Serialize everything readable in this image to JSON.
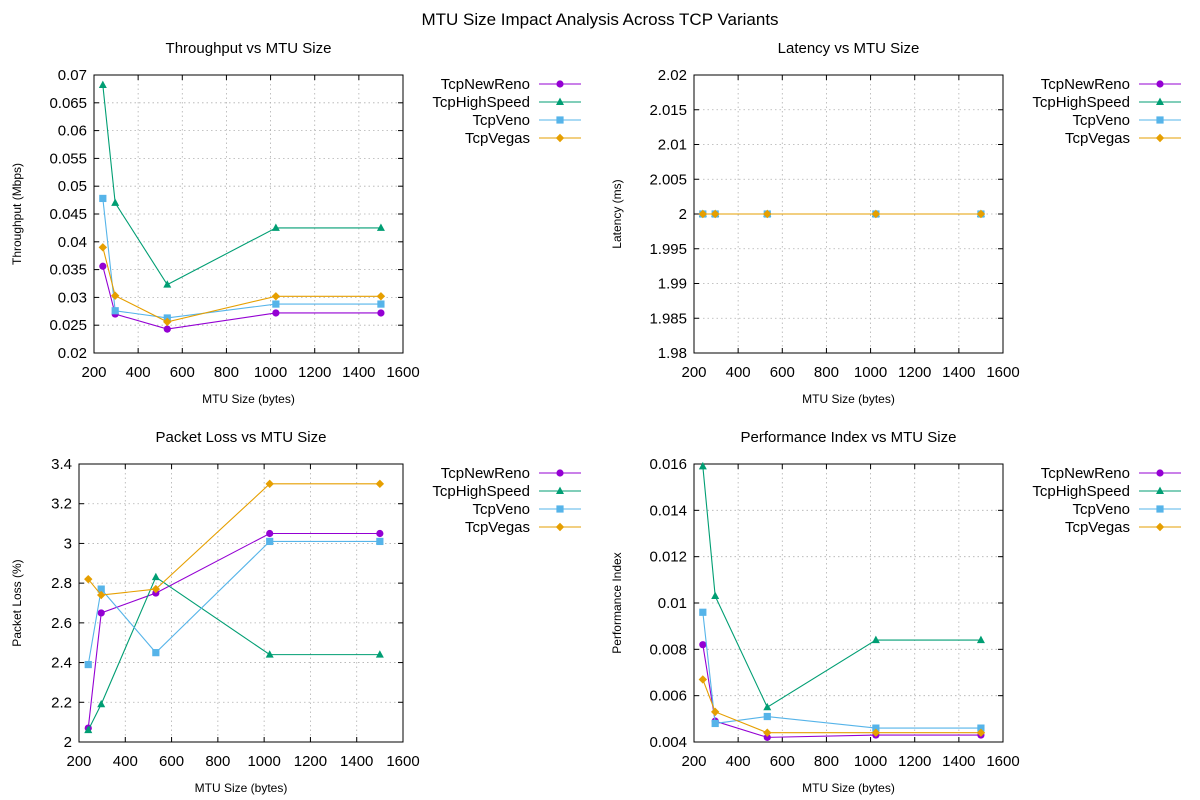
{
  "figure": {
    "title": "MTU Size Impact Analysis Across TCP Variants"
  },
  "legend_styles": [
    {
      "color": "#9400d3",
      "marker": "circle"
    },
    {
      "color": "#009e73",
      "marker": "triangle"
    },
    {
      "color": "#56b4e9",
      "marker": "square"
    },
    {
      "color": "#e69f00",
      "marker": "diamond"
    }
  ],
  "chart_data": [
    {
      "type": "line",
      "title": "Throughput vs MTU Size",
      "xlabel": "MTU Size (bytes)",
      "ylabel": "Throughput (Mbps)",
      "xlim": [
        200,
        1600
      ],
      "ylim": [
        0.02,
        0.07
      ],
      "xticks": [
        "200",
        "400",
        "600",
        "800",
        "1000",
        "1200",
        "1400",
        "1600"
      ],
      "yticks": [
        "0.02",
        "0.025",
        "0.03",
        "0.035",
        "0.04",
        "0.045",
        "0.05",
        "0.055",
        "0.06",
        "0.065",
        "0.07"
      ],
      "grid": true,
      "legend_position": "outside-right",
      "x": [
        240,
        296,
        532,
        1024,
        1500
      ],
      "series": [
        {
          "name": "TcpNewReno",
          "values": [
            0.0356,
            0.027,
            0.0243,
            0.0272,
            0.0272
          ]
        },
        {
          "name": "TcpHighSpeed",
          "values": [
            0.0682,
            0.047,
            0.0323,
            0.0425,
            0.0425
          ]
        },
        {
          "name": "TcpVeno",
          "values": [
            0.0478,
            0.0276,
            0.0263,
            0.0288,
            0.0288
          ]
        },
        {
          "name": "TcpVegas",
          "values": [
            0.039,
            0.0303,
            0.0256,
            0.0302,
            0.0302
          ]
        }
      ]
    },
    {
      "type": "line",
      "title": "Latency vs MTU Size",
      "xlabel": "MTU Size (bytes)",
      "ylabel": "Latency (ms)",
      "xlim": [
        200,
        1600
      ],
      "ylim": [
        1.98,
        2.02
      ],
      "xticks": [
        "200",
        "400",
        "600",
        "800",
        "1000",
        "1200",
        "1400",
        "1600"
      ],
      "yticks": [
        "1.98",
        "1.985",
        "1.99",
        "1.995",
        "2",
        "2.005",
        "2.01",
        "2.015",
        "2.02"
      ],
      "grid": true,
      "legend_position": "outside-right",
      "x": [
        240,
        296,
        532,
        1024,
        1500
      ],
      "series": [
        {
          "name": "TcpNewReno",
          "values": [
            2,
            2,
            2,
            2,
            2
          ]
        },
        {
          "name": "TcpHighSpeed",
          "values": [
            2,
            2,
            2,
            2,
            2
          ]
        },
        {
          "name": "TcpVeno",
          "values": [
            2,
            2,
            2,
            2,
            2
          ]
        },
        {
          "name": "TcpVegas",
          "values": [
            2,
            2,
            2,
            2,
            2
          ]
        }
      ]
    },
    {
      "type": "line",
      "title": "Packet Loss vs MTU Size",
      "xlabel": "MTU Size (bytes)",
      "ylabel": "Packet Loss (%)",
      "xlim": [
        200,
        1600
      ],
      "ylim": [
        2,
        3.4
      ],
      "xticks": [
        "200",
        "400",
        "600",
        "800",
        "1000",
        "1200",
        "1400",
        "1600"
      ],
      "yticks": [
        "2",
        "2.2",
        "2.4",
        "2.6",
        "2.8",
        "3",
        "3.2",
        "3.4"
      ],
      "grid": true,
      "legend_position": "outside-right",
      "x": [
        240,
        296,
        532,
        1024,
        1500
      ],
      "series": [
        {
          "name": "TcpNewReno",
          "values": [
            2.07,
            2.65,
            2.75,
            3.05,
            3.05
          ]
        },
        {
          "name": "TcpHighSpeed",
          "values": [
            2.06,
            2.19,
            2.83,
            2.44,
            2.44
          ]
        },
        {
          "name": "TcpVeno",
          "values": [
            2.39,
            2.77,
            2.45,
            3.01,
            3.01
          ]
        },
        {
          "name": "TcpVegas",
          "values": [
            2.82,
            2.74,
            2.77,
            3.3,
            3.3
          ]
        }
      ]
    },
    {
      "type": "line",
      "title": "Performance Index vs MTU Size",
      "xlabel": "MTU Size (bytes)",
      "ylabel": "Performance Index",
      "xlim": [
        200,
        1600
      ],
      "ylim": [
        0.004,
        0.016
      ],
      "xticks": [
        "200",
        "400",
        "600",
        "800",
        "1000",
        "1200",
        "1400",
        "1600"
      ],
      "yticks": [
        "0.004",
        "0.006",
        "0.008",
        "0.01",
        "0.012",
        "0.014",
        "0.016"
      ],
      "grid": true,
      "legend_position": "outside-right",
      "x": [
        240,
        296,
        532,
        1024,
        1500
      ],
      "series": [
        {
          "name": "TcpNewReno",
          "values": [
            0.0082,
            0.0049,
            0.0042,
            0.0043,
            0.0043
          ]
        },
        {
          "name": "TcpHighSpeed",
          "values": [
            0.0159,
            0.0103,
            0.0055,
            0.0084,
            0.0084
          ]
        },
        {
          "name": "TcpVeno",
          "values": [
            0.0096,
            0.0048,
            0.0051,
            0.0046,
            0.0046
          ]
        },
        {
          "name": "TcpVegas",
          "values": [
            0.0067,
            0.0053,
            0.0044,
            0.0044,
            0.0044
          ]
        }
      ]
    }
  ]
}
